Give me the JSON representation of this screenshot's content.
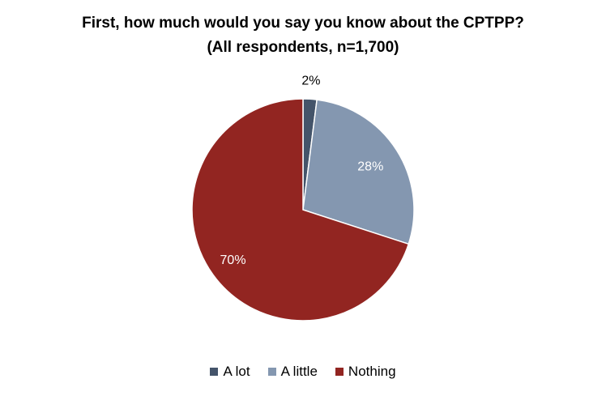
{
  "chart_data": {
    "type": "pie",
    "title_lines": [
      "First, how much would you say you know about the CPTPP?",
      "(All respondents, n=1,700)"
    ],
    "categories": [
      "A lot",
      "A little",
      "Nothing"
    ],
    "values": [
      2,
      28,
      70
    ],
    "value_labels": [
      "2%",
      "28%",
      "70%"
    ],
    "colors": [
      "#44546a",
      "#8497b0",
      "#922521"
    ],
    "label_colors": [
      "#000000",
      "#ffffff",
      "#ffffff"
    ],
    "legend_position": "bottom"
  }
}
